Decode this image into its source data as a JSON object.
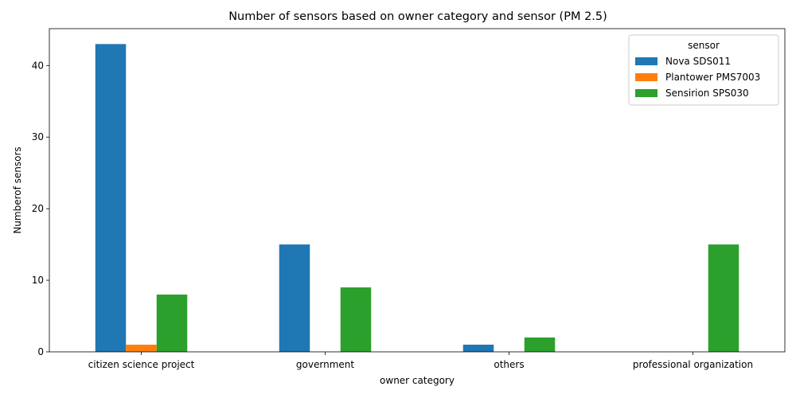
{
  "chart_data": {
    "type": "bar",
    "title": "Number of sensors based on owner category and sensor (PM 2.5)",
    "xlabel": "owner category",
    "ylabel": "Numberof sensors",
    "categories": [
      "citizen science project",
      "government",
      "others",
      "professional organization"
    ],
    "series": [
      {
        "name": "Nova SDS011",
        "color": "#1f77b4",
        "values": [
          43,
          15,
          1,
          0
        ]
      },
      {
        "name": "Plantower PMS7003",
        "color": "#ff7f0e",
        "values": [
          1,
          0,
          0,
          0
        ]
      },
      {
        "name": "Sensirion SPS030",
        "color": "#2ca02c",
        "values": [
          8,
          9,
          2,
          15
        ]
      }
    ],
    "ylim": [
      0,
      45.15
    ],
    "yticks": [
      0,
      10,
      20,
      30,
      40
    ],
    "grid": false,
    "legend": {
      "title": "sensor",
      "placement": "top-right"
    }
  }
}
